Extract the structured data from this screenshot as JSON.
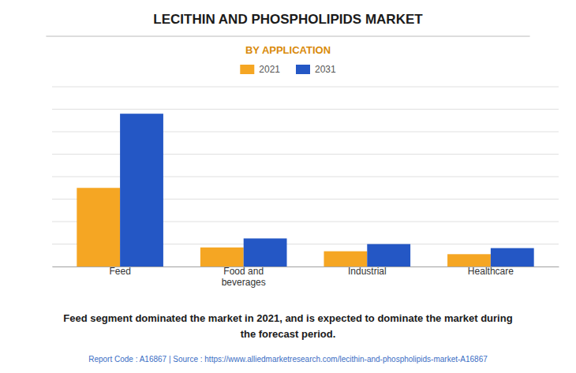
{
  "chart_data": {
    "type": "bar",
    "title": "LECITHIN AND PHOSPHOLIPIDS MARKET",
    "subtitle": "BY APPLICATION",
    "categories": [
      "Feed",
      "Food and\nbeverages",
      "Industrial",
      "Healthcare"
    ],
    "series": [
      {
        "name": "2021",
        "color": "#F5A623",
        "values": [
          3.5,
          0.85,
          0.68,
          0.55
        ]
      },
      {
        "name": "2031",
        "color": "#2457C5",
        "values": [
          6.8,
          1.25,
          1.0,
          0.82
        ]
      }
    ],
    "ylim": [
      0,
      8.0
    ],
    "yticks": [
      0,
      1,
      2,
      3,
      4,
      5,
      6,
      7,
      8
    ],
    "grid": true,
    "legend": "top",
    "tick_labels": "x",
    "annotations": [
      "Feed segment dominated the market in 2021, and is expected to dominate the market during\nthe forecast period.",
      "Report Code : A16867   |   Source : https://www.alliedmarketresearch.com/lecithin-and-phospholipids-market-A16867"
    ]
  }
}
